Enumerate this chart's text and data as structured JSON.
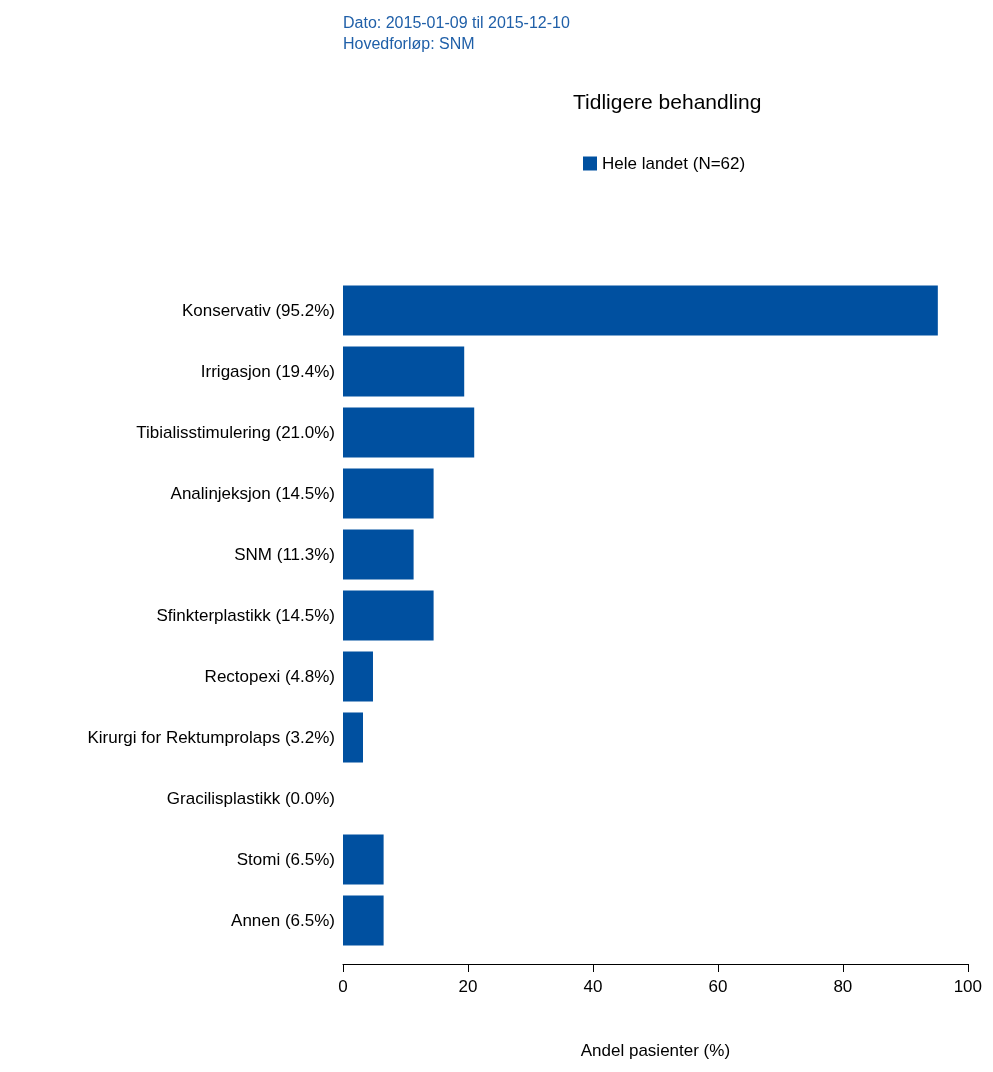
{
  "chart_data": {
    "type": "bar",
    "orientation": "horizontal",
    "title": "Tidligere behandling",
    "annotations": [
      "Dato: 2015-01-09 til 2015-12-10",
      "Hovedforløp: SNM"
    ],
    "categories": [
      "Konservativ (95.2%)",
      "Irrigasjon (19.4%)",
      "Tibialisstimulering (21.0%)",
      "Analinjeksjon (14.5%)",
      "SNM (11.3%)",
      "Sfinkterplastikk (14.5%)",
      "Rectopexi (4.8%)",
      "Kirurgi for Rektumprolaps (3.2%)",
      "Gracilisplastikk (0.0%)",
      "Stomi (6.5%)",
      "Annen (6.5%)"
    ],
    "series": [
      {
        "name": "Hele landet (N=62)",
        "color": "#0050a0",
        "values": [
          95.2,
          19.4,
          21.0,
          14.5,
          11.3,
          14.5,
          4.8,
          3.2,
          0.0,
          6.5,
          6.5
        ]
      }
    ],
    "xlim": [
      0,
      100
    ],
    "xticks": [
      0,
      20,
      40,
      60,
      80,
      100
    ],
    "xlabel": "Andel pasienter (%)",
    "legend": "top",
    "grid": false
  }
}
